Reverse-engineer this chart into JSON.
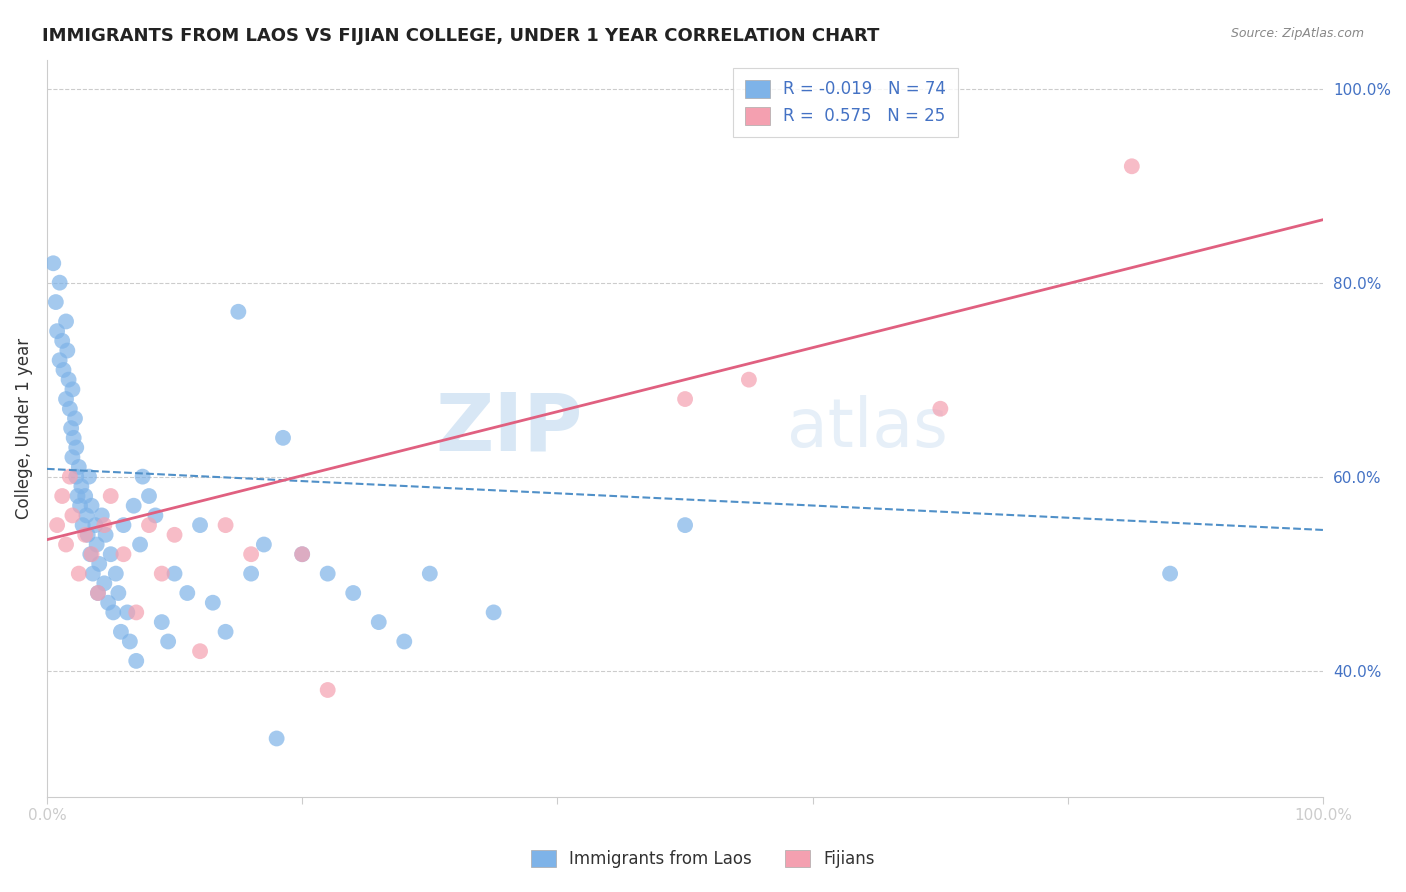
{
  "title": "IMMIGRANTS FROM LAOS VS FIJIAN COLLEGE, UNDER 1 YEAR CORRELATION CHART",
  "source": "Source: ZipAtlas.com",
  "ylabel": "College, Under 1 year",
  "xlim": [
    0.0,
    1.0
  ],
  "ylim": [
    0.27,
    1.03
  ],
  "yticks": [
    0.4,
    0.6,
    0.8,
    1.0
  ],
  "ytick_labels": [
    "40.0%",
    "60.0%",
    "80.0%",
    "100.0%"
  ],
  "legend_blue_label": "R = -0.019   N = 74",
  "legend_pink_label": "R =  0.575   N = 25",
  "blue_color": "#7EB3E8",
  "pink_color": "#F4A0B0",
  "blue_line_color": "#5090C8",
  "pink_line_color": "#E06080",
  "blue_scatter_x": [
    0.005,
    0.007,
    0.008,
    0.01,
    0.01,
    0.012,
    0.013,
    0.015,
    0.015,
    0.016,
    0.017,
    0.018,
    0.019,
    0.02,
    0.02,
    0.021,
    0.022,
    0.023,
    0.023,
    0.024,
    0.025,
    0.026,
    0.027,
    0.028,
    0.03,
    0.031,
    0.032,
    0.033,
    0.034,
    0.035,
    0.036,
    0.038,
    0.039,
    0.04,
    0.041,
    0.043,
    0.045,
    0.046,
    0.048,
    0.05,
    0.052,
    0.054,
    0.056,
    0.058,
    0.06,
    0.063,
    0.065,
    0.068,
    0.07,
    0.073,
    0.075,
    0.08,
    0.085,
    0.09,
    0.095,
    0.1,
    0.11,
    0.12,
    0.13,
    0.14,
    0.15,
    0.16,
    0.17,
    0.185,
    0.2,
    0.22,
    0.24,
    0.26,
    0.28,
    0.3,
    0.35,
    0.5,
    0.88,
    0.18
  ],
  "blue_scatter_y": [
    0.82,
    0.78,
    0.75,
    0.72,
    0.8,
    0.74,
    0.71,
    0.76,
    0.68,
    0.73,
    0.7,
    0.67,
    0.65,
    0.62,
    0.69,
    0.64,
    0.66,
    0.6,
    0.63,
    0.58,
    0.61,
    0.57,
    0.59,
    0.55,
    0.58,
    0.56,
    0.54,
    0.6,
    0.52,
    0.57,
    0.5,
    0.55,
    0.53,
    0.48,
    0.51,
    0.56,
    0.49,
    0.54,
    0.47,
    0.52,
    0.46,
    0.5,
    0.48,
    0.44,
    0.55,
    0.46,
    0.43,
    0.57,
    0.41,
    0.53,
    0.6,
    0.58,
    0.56,
    0.45,
    0.43,
    0.5,
    0.48,
    0.55,
    0.47,
    0.44,
    0.77,
    0.5,
    0.53,
    0.64,
    0.52,
    0.5,
    0.48,
    0.45,
    0.43,
    0.5,
    0.46,
    0.55,
    0.5,
    0.33
  ],
  "pink_scatter_x": [
    0.008,
    0.012,
    0.015,
    0.018,
    0.02,
    0.025,
    0.03,
    0.035,
    0.04,
    0.045,
    0.05,
    0.06,
    0.07,
    0.08,
    0.09,
    0.1,
    0.12,
    0.14,
    0.16,
    0.2,
    0.22,
    0.5,
    0.55,
    0.7,
    0.85
  ],
  "pink_scatter_y": [
    0.55,
    0.58,
    0.53,
    0.6,
    0.56,
    0.5,
    0.54,
    0.52,
    0.48,
    0.55,
    0.58,
    0.52,
    0.46,
    0.55,
    0.5,
    0.54,
    0.42,
    0.55,
    0.52,
    0.52,
    0.38,
    0.68,
    0.7,
    0.67,
    0.92
  ],
  "blue_trend_y_start": 0.608,
  "blue_trend_y_end": 0.545,
  "pink_trend_y_start": 0.535,
  "pink_trend_y_end": 0.865
}
